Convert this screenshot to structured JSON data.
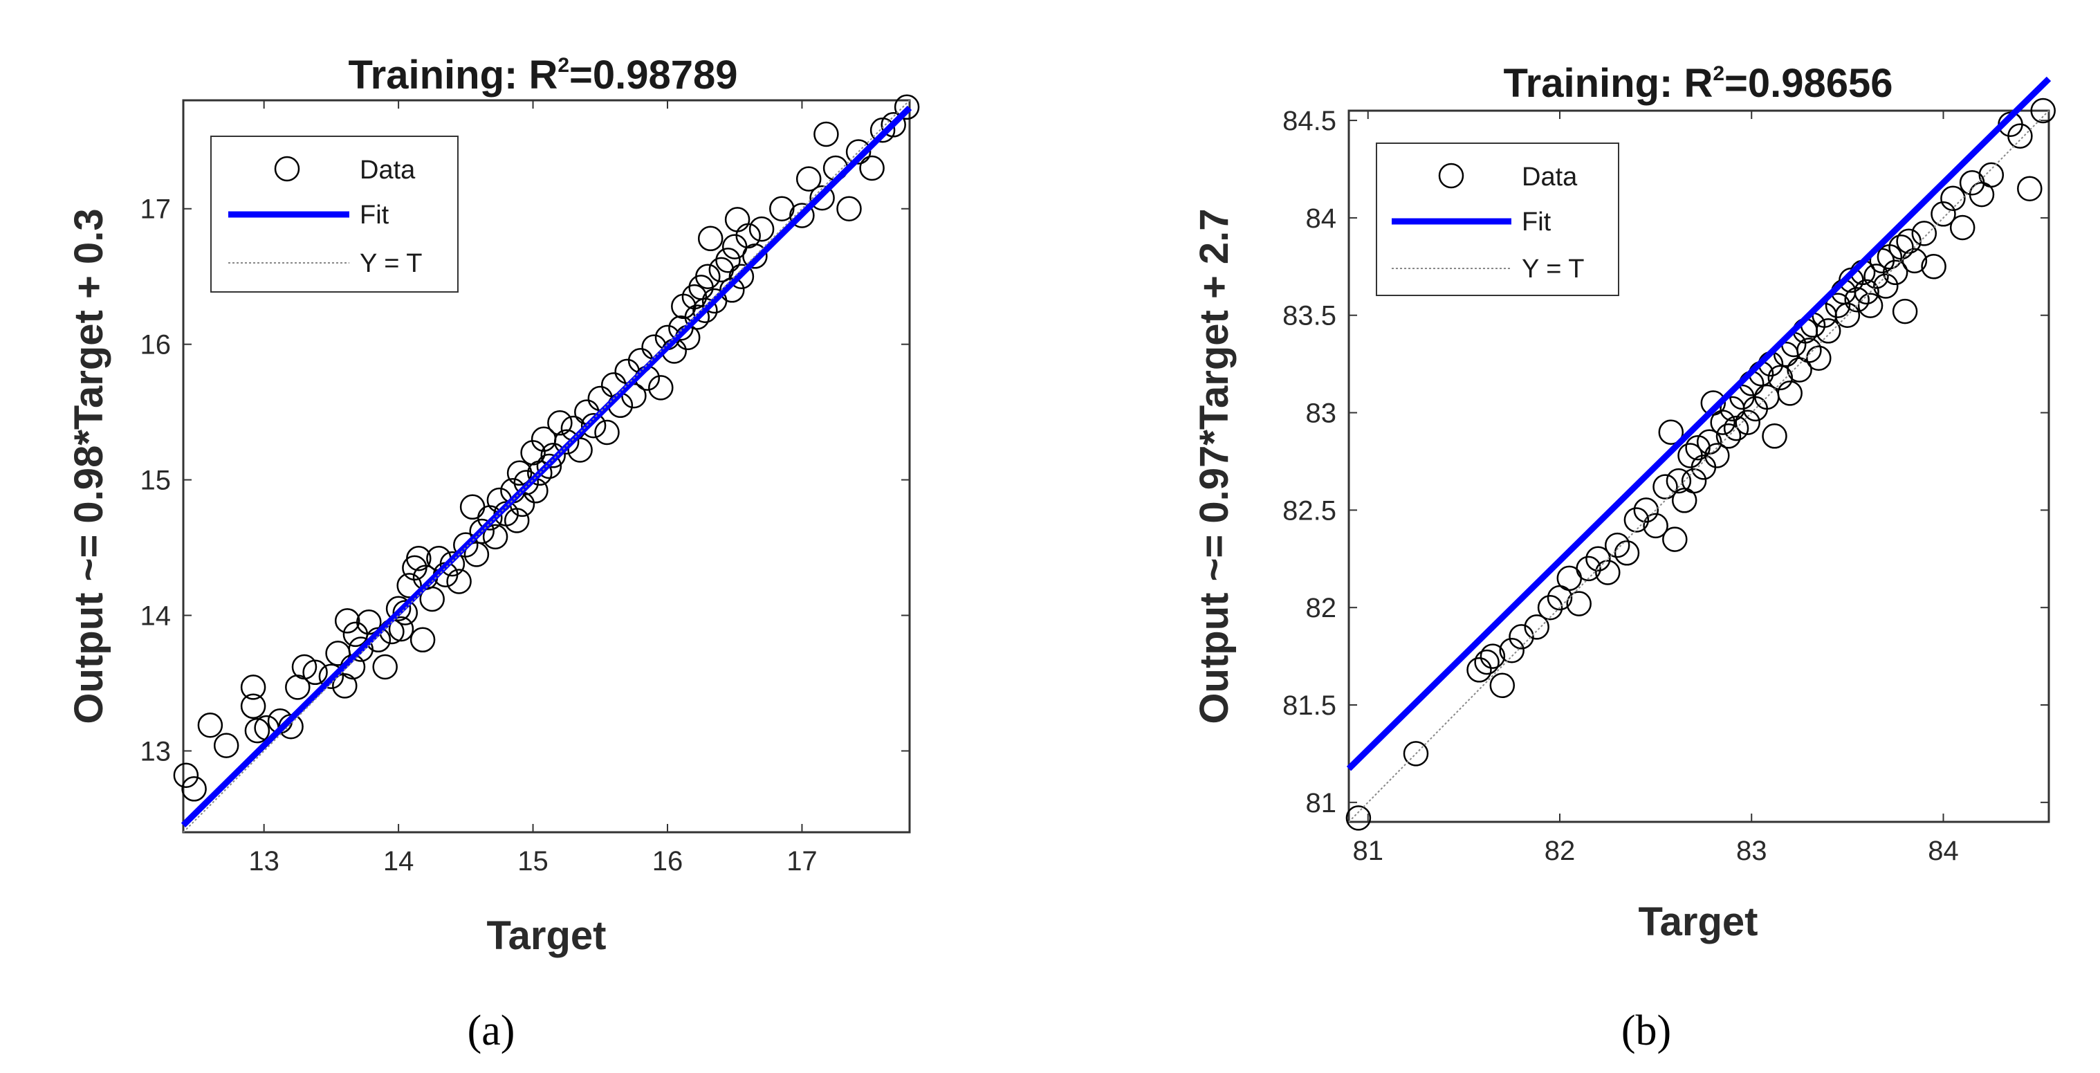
{
  "chart_data": [
    {
      "type": "scatter",
      "panel_label": "(a)",
      "title": "Training: R",
      "title_sup": "2",
      "title_value": "=0.98789",
      "xlabel": "Target",
      "ylabel": "Output ~= 0.98*Target + 0.3",
      "xlim": [
        12.4,
        17.8
      ],
      "ylim": [
        12.4,
        17.8
      ],
      "xticks": [
        13,
        14,
        15,
        16,
        17
      ],
      "yticks": [
        13,
        14,
        15,
        16,
        17
      ],
      "grid": false,
      "legend_position": "top-left",
      "legend": [
        "Data",
        "Fit",
        "Y = T"
      ],
      "fit": {
        "slope": 0.98,
        "intercept": 0.3,
        "color": "#0000ff"
      },
      "identity_line_color": "#888888",
      "marker_color": "#000000",
      "points": [
        [
          12.42,
          12.82
        ],
        [
          12.48,
          12.72
        ],
        [
          12.6,
          13.19
        ],
        [
          12.72,
          13.04
        ],
        [
          12.92,
          13.47
        ],
        [
          12.92,
          13.33
        ],
        [
          12.95,
          13.15
        ],
        [
          13.02,
          13.17
        ],
        [
          13.12,
          13.22
        ],
        [
          13.2,
          13.18
        ],
        [
          13.25,
          13.47
        ],
        [
          13.3,
          13.62
        ],
        [
          13.38,
          13.58
        ],
        [
          13.5,
          13.55
        ],
        [
          13.55,
          13.72
        ],
        [
          13.6,
          13.48
        ],
        [
          13.62,
          13.96
        ],
        [
          13.66,
          13.62
        ],
        [
          13.68,
          13.86
        ],
        [
          13.72,
          13.75
        ],
        [
          13.78,
          13.95
        ],
        [
          13.85,
          13.82
        ],
        [
          13.9,
          13.62
        ],
        [
          13.95,
          13.88
        ],
        [
          14.0,
          14.05
        ],
        [
          14.02,
          13.9
        ],
        [
          14.05,
          14.02
        ],
        [
          14.08,
          14.22
        ],
        [
          14.12,
          14.35
        ],
        [
          14.15,
          14.42
        ],
        [
          14.18,
          13.82
        ],
        [
          14.2,
          14.28
        ],
        [
          14.25,
          14.12
        ],
        [
          14.3,
          14.42
        ],
        [
          14.35,
          14.3
        ],
        [
          14.4,
          14.38
        ],
        [
          14.45,
          14.25
        ],
        [
          14.5,
          14.52
        ],
        [
          14.55,
          14.8
        ],
        [
          14.58,
          14.45
        ],
        [
          14.62,
          14.62
        ],
        [
          14.68,
          14.72
        ],
        [
          14.72,
          14.58
        ],
        [
          14.75,
          14.85
        ],
        [
          14.8,
          14.75
        ],
        [
          14.85,
          14.92
        ],
        [
          14.88,
          14.7
        ],
        [
          14.9,
          15.05
        ],
        [
          14.92,
          14.82
        ],
        [
          14.95,
          14.98
        ],
        [
          15.0,
          15.2
        ],
        [
          15.02,
          14.92
        ],
        [
          15.05,
          15.05
        ],
        [
          15.08,
          15.3
        ],
        [
          15.12,
          15.1
        ],
        [
          15.15,
          15.18
        ],
        [
          15.2,
          15.42
        ],
        [
          15.25,
          15.28
        ],
        [
          15.3,
          15.38
        ],
        [
          15.35,
          15.22
        ],
        [
          15.4,
          15.5
        ],
        [
          15.45,
          15.4
        ],
        [
          15.5,
          15.6
        ],
        [
          15.55,
          15.35
        ],
        [
          15.6,
          15.7
        ],
        [
          15.65,
          15.55
        ],
        [
          15.7,
          15.8
        ],
        [
          15.75,
          15.62
        ],
        [
          15.8,
          15.88
        ],
        [
          15.85,
          15.75
        ],
        [
          15.9,
          15.98
        ],
        [
          15.95,
          15.68
        ],
        [
          16.0,
          16.05
        ],
        [
          16.05,
          15.95
        ],
        [
          16.1,
          16.12
        ],
        [
          16.12,
          16.28
        ],
        [
          16.15,
          16.05
        ],
        [
          16.2,
          16.35
        ],
        [
          16.22,
          16.2
        ],
        [
          16.25,
          16.42
        ],
        [
          16.28,
          16.25
        ],
        [
          16.3,
          16.5
        ],
        [
          16.32,
          16.78
        ],
        [
          16.35,
          16.32
        ],
        [
          16.4,
          16.55
        ],
        [
          16.45,
          16.62
        ],
        [
          16.48,
          16.4
        ],
        [
          16.5,
          16.72
        ],
        [
          16.52,
          16.92
        ],
        [
          16.55,
          16.5
        ],
        [
          16.6,
          16.8
        ],
        [
          16.65,
          16.65
        ],
        [
          16.7,
          16.85
        ],
        [
          16.85,
          17.0
        ],
        [
          17.0,
          16.95
        ],
        [
          17.05,
          17.22
        ],
        [
          17.15,
          17.08
        ],
        [
          17.18,
          17.55
        ],
        [
          17.25,
          17.3
        ],
        [
          17.35,
          17.0
        ],
        [
          17.42,
          17.42
        ],
        [
          17.52,
          17.3
        ],
        [
          17.6,
          17.58
        ],
        [
          17.68,
          17.62
        ],
        [
          17.78,
          17.75
        ]
      ]
    },
    {
      "type": "scatter",
      "panel_label": "(b)",
      "title": "Training: R",
      "title_sup": "2",
      "title_value": "=0.98656",
      "xlabel": "Target",
      "ylabel": "Output ~= 0.97*Target + 2.7",
      "xlim": [
        80.9,
        84.55
      ],
      "ylim": [
        80.9,
        84.55
      ],
      "xticks": [
        81,
        82,
        83,
        84
      ],
      "yticks": [
        81,
        81.5,
        82,
        82.5,
        83,
        83.5,
        84,
        84.5
      ],
      "grid": false,
      "legend_position": "top-left",
      "legend": [
        "Data",
        "Fit",
        "Y = T"
      ],
      "fit": {
        "slope": 0.97,
        "intercept": 2.7,
        "color": "#0000ff"
      },
      "identity_line_color": "#888888",
      "marker_color": "#000000",
      "points": [
        [
          80.95,
          80.92
        ],
        [
          81.25,
          81.25
        ],
        [
          81.58,
          81.68
        ],
        [
          81.62,
          81.72
        ],
        [
          81.65,
          81.75
        ],
        [
          81.7,
          81.6
        ],
        [
          81.75,
          81.78
        ],
        [
          81.8,
          81.85
        ],
        [
          81.88,
          81.9
        ],
        [
          81.95,
          82.0
        ],
        [
          82.0,
          82.05
        ],
        [
          82.05,
          82.15
        ],
        [
          82.1,
          82.02
        ],
        [
          82.15,
          82.2
        ],
        [
          82.2,
          82.25
        ],
        [
          82.25,
          82.18
        ],
        [
          82.3,
          82.32
        ],
        [
          82.35,
          82.28
        ],
        [
          82.4,
          82.45
        ],
        [
          82.45,
          82.5
        ],
        [
          82.5,
          82.42
        ],
        [
          82.55,
          82.62
        ],
        [
          82.58,
          82.9
        ],
        [
          82.6,
          82.35
        ],
        [
          82.62,
          82.65
        ],
        [
          82.65,
          82.55
        ],
        [
          82.68,
          82.78
        ],
        [
          82.7,
          82.65
        ],
        [
          82.72,
          82.82
        ],
        [
          82.75,
          82.72
        ],
        [
          82.78,
          82.85
        ],
        [
          82.8,
          83.05
        ],
        [
          82.82,
          82.78
        ],
        [
          82.85,
          82.95
        ],
        [
          82.88,
          82.88
        ],
        [
          82.9,
          83.02
        ],
        [
          82.92,
          82.92
        ],
        [
          82.95,
          83.08
        ],
        [
          82.98,
          82.95
        ],
        [
          83.0,
          83.15
        ],
        [
          83.02,
          83.02
        ],
        [
          83.05,
          83.2
        ],
        [
          83.08,
          83.08
        ],
        [
          83.1,
          83.25
        ],
        [
          83.12,
          82.88
        ],
        [
          83.15,
          83.18
        ],
        [
          83.18,
          83.3
        ],
        [
          83.2,
          83.1
        ],
        [
          83.22,
          83.35
        ],
        [
          83.25,
          83.22
        ],
        [
          83.28,
          83.42
        ],
        [
          83.3,
          83.32
        ],
        [
          83.32,
          83.45
        ],
        [
          83.35,
          83.28
        ],
        [
          83.38,
          83.5
        ],
        [
          83.4,
          83.42
        ],
        [
          83.45,
          83.55
        ],
        [
          83.48,
          83.62
        ],
        [
          83.5,
          83.5
        ],
        [
          83.52,
          83.68
        ],
        [
          83.55,
          83.58
        ],
        [
          83.58,
          83.72
        ],
        [
          83.6,
          83.62
        ],
        [
          83.62,
          83.55
        ],
        [
          83.65,
          83.7
        ],
        [
          83.68,
          83.78
        ],
        [
          83.7,
          83.65
        ],
        [
          83.72,
          83.8
        ],
        [
          83.75,
          83.72
        ],
        [
          83.78,
          83.85
        ],
        [
          83.8,
          83.52
        ],
        [
          83.82,
          83.88
        ],
        [
          83.85,
          83.78
        ],
        [
          83.9,
          83.92
        ],
        [
          83.95,
          83.75
        ],
        [
          84.0,
          84.02
        ],
        [
          84.05,
          84.1
        ],
        [
          84.1,
          83.95
        ],
        [
          84.15,
          84.18
        ],
        [
          84.2,
          84.12
        ],
        [
          84.25,
          84.22
        ],
        [
          84.35,
          84.48
        ],
        [
          84.4,
          84.42
        ],
        [
          84.45,
          84.15
        ],
        [
          84.52,
          84.55
        ]
      ]
    }
  ]
}
